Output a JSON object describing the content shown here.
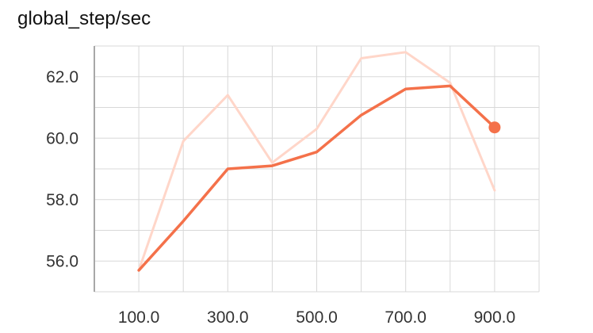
{
  "chart_data": {
    "type": "line",
    "title": "global_step/sec",
    "xlabel": "",
    "ylabel": "",
    "x": [
      100,
      200,
      300,
      400,
      500,
      600,
      700,
      800,
      900
    ],
    "series": [
      {
        "role": "raw",
        "color": "#FFD6C9",
        "values": [
          55.7,
          59.9,
          61.4,
          59.2,
          60.3,
          62.6,
          62.8,
          61.8,
          58.3
        ]
      },
      {
        "role": "smoothed",
        "color": "#F4714A",
        "values": [
          55.7,
          57.3,
          59.0,
          59.1,
          59.55,
          60.75,
          61.6,
          61.7,
          60.35
        ]
      }
    ],
    "x_ticks": [
      100,
      200,
      300,
      400,
      500,
      600,
      700,
      800,
      900,
      1000
    ],
    "x_tick_labels": [
      "100.0",
      "",
      "300.0",
      "",
      "500.0",
      "",
      "700.0",
      "",
      "900.0",
      ""
    ],
    "y_ticks": [
      55,
      56,
      57,
      58,
      59,
      60,
      61,
      62,
      63
    ],
    "y_tick_labels": [
      "",
      "56.0",
      "",
      "58.0",
      "",
      "60.0",
      "",
      "62.0",
      ""
    ],
    "xlim": [
      0,
      1000
    ],
    "ylim": [
      55,
      63
    ],
    "grid": true,
    "legend": "none",
    "end_marker": true
  }
}
